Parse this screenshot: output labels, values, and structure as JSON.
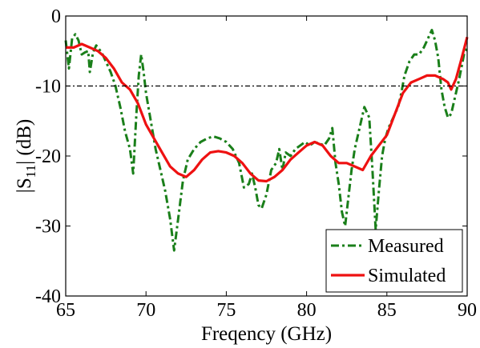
{
  "chart_data": {
    "type": "line",
    "title": "",
    "xlabel": "Freqency (GHz)",
    "ylabel_main": "|S",
    "ylabel_sub": "11",
    "ylabel_tail": "| (dB)",
    "xlim": [
      65,
      90
    ],
    "ylim": [
      -40,
      0
    ],
    "xticks": [
      65,
      70,
      75,
      80,
      85,
      90
    ],
    "yticks": [
      0,
      -10,
      -20,
      -30,
      -40
    ],
    "xtick_labels": [
      "65",
      "70",
      "75",
      "80",
      "85",
      "90"
    ],
    "ytick_labels": [
      "0",
      "-10",
      "-20",
      "-30",
      "-40"
    ],
    "grid": false,
    "legend_position": "bottom-right",
    "reference_line": {
      "y": -10,
      "color": "#000000",
      "style": "dash-dot"
    },
    "series": [
      {
        "name": "Measured",
        "color": "#1a7f1a",
        "style": "dash-dot",
        "x": [
          65.0,
          65.2,
          65.4,
          65.6,
          65.8,
          66.0,
          66.2,
          66.4,
          66.5,
          66.7,
          66.9,
          67.1,
          67.3,
          67.5,
          67.8,
          68.1,
          68.4,
          68.7,
          69.0,
          69.2,
          69.4,
          69.55,
          69.7,
          69.85,
          70.0,
          70.3,
          70.6,
          70.9,
          71.2,
          71.5,
          71.75,
          72.0,
          72.3,
          72.6,
          73.0,
          73.4,
          73.8,
          74.2,
          74.6,
          75.0,
          75.4,
          75.8,
          76.1,
          76.4,
          76.6,
          76.8,
          77.0,
          77.2,
          77.5,
          77.8,
          78.1,
          78.3,
          78.5,
          78.7,
          79.0,
          79.3,
          79.6,
          79.9,
          80.2,
          80.5,
          80.8,
          81.1,
          81.4,
          81.6,
          81.8,
          82.0,
          82.2,
          82.4,
          82.6,
          82.8,
          83.0,
          83.3,
          83.6,
          83.9,
          84.1,
          84.3,
          84.5,
          84.7,
          84.9,
          85.1,
          85.3,
          85.5,
          85.7,
          85.9,
          86.1,
          86.4,
          86.7,
          87.0,
          87.3,
          87.6,
          87.8,
          88.0,
          88.2,
          88.4,
          88.6,
          88.8,
          89.0,
          89.2,
          89.5,
          89.8,
          90.0
        ],
        "y": [
          -3.5,
          -7.5,
          -3.2,
          -2.6,
          -3.5,
          -5.5,
          -5.2,
          -5.0,
          -8.0,
          -5.2,
          -4.2,
          -4.8,
          -5.5,
          -6.5,
          -8.0,
          -10.0,
          -13.0,
          -16.5,
          -19.0,
          -22.5,
          -14.0,
          -8.5,
          -5.5,
          -8.0,
          -11.0,
          -15.0,
          -19.0,
          -22.0,
          -25.0,
          -29.0,
          -33.5,
          -29.0,
          -23.5,
          -20.5,
          -19.0,
          -18.0,
          -17.5,
          -17.2,
          -17.5,
          -18.0,
          -19.0,
          -21.0,
          -24.5,
          -24.0,
          -22.5,
          -24.5,
          -27.0,
          -27.5,
          -25.5,
          -22.0,
          -21.0,
          -19.0,
          -22.0,
          -19.5,
          -20.0,
          -19.0,
          -18.5,
          -18.0,
          -18.5,
          -18.0,
          -18.2,
          -18.5,
          -17.5,
          -16.0,
          -21.0,
          -24.0,
          -28.0,
          -30.0,
          -26.0,
          -22.0,
          -19.0,
          -16.0,
          -13.0,
          -14.5,
          -22.0,
          -30.5,
          -25.0,
          -20.0,
          -17.5,
          -16.0,
          -15.0,
          -14.0,
          -13.0,
          -11.0,
          -8.5,
          -6.5,
          -5.5,
          -5.5,
          -4.5,
          -3.0,
          -2.0,
          -3.5,
          -6.0,
          -10.5,
          -13.0,
          -14.5,
          -14.0,
          -12.0,
          -9.0,
          -5.5,
          -4.5
        ]
      },
      {
        "name": "Simulated",
        "color": "#ee1111",
        "style": "solid",
        "x": [
          65.0,
          65.5,
          66.0,
          66.5,
          67.0,
          67.5,
          68.0,
          68.5,
          69.0,
          69.5,
          70.0,
          70.5,
          71.0,
          71.5,
          72.0,
          72.5,
          73.0,
          73.5,
          74.0,
          74.5,
          75.0,
          75.5,
          76.0,
          76.5,
          77.0,
          77.5,
          78.0,
          78.5,
          79.0,
          79.5,
          80.0,
          80.5,
          81.0,
          81.5,
          82.0,
          82.5,
          83.0,
          83.5,
          84.0,
          84.5,
          85.0,
          85.5,
          86.0,
          86.5,
          87.0,
          87.5,
          88.0,
          88.5,
          88.8,
          89.0,
          89.3,
          89.6,
          90.0
        ],
        "y": [
          -4.5,
          -4.5,
          -4.0,
          -4.5,
          -5.0,
          -6.0,
          -7.5,
          -9.5,
          -10.5,
          -12.5,
          -15.5,
          -17.5,
          -19.5,
          -21.5,
          -22.5,
          -23.0,
          -22.0,
          -20.5,
          -19.5,
          -19.3,
          -19.5,
          -20.0,
          -21.0,
          -22.5,
          -23.5,
          -23.6,
          -23.0,
          -22.0,
          -20.5,
          -19.5,
          -18.5,
          -18.0,
          -18.5,
          -20.0,
          -21.0,
          -21.0,
          -21.5,
          -22.0,
          -20.0,
          -18.5,
          -17.0,
          -14.0,
          -11.0,
          -9.5,
          -9.0,
          -8.5,
          -8.5,
          -9.0,
          -9.5,
          -10.5,
          -9.0,
          -6.5,
          -3.0
        ]
      }
    ]
  }
}
